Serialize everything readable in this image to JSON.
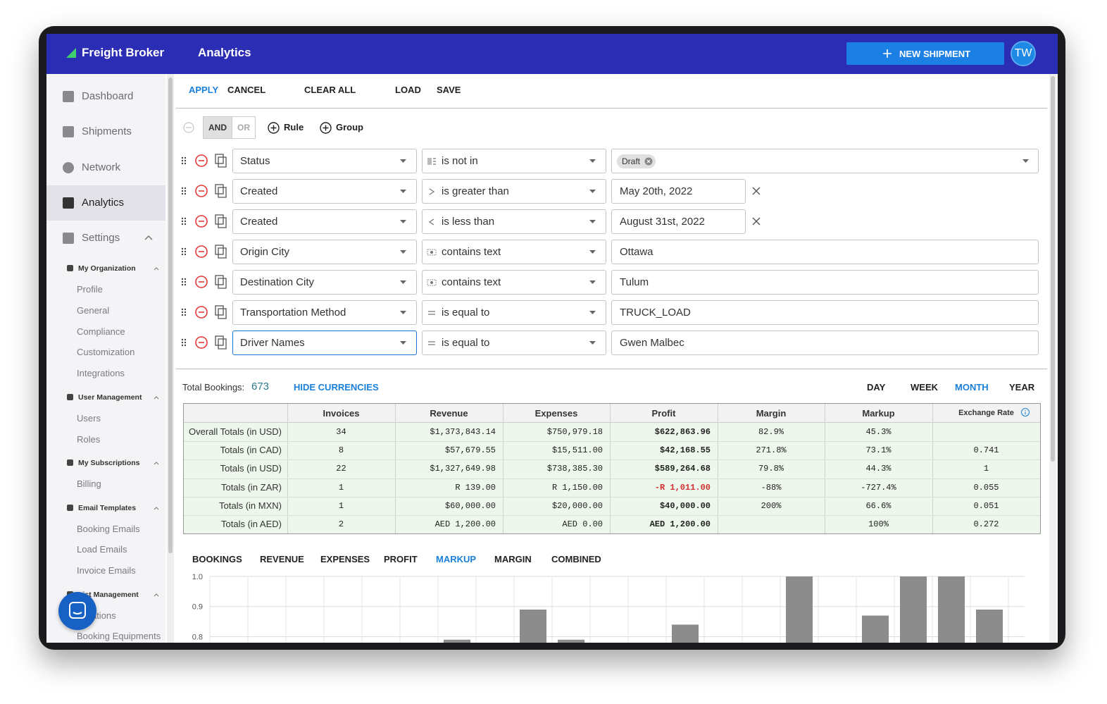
{
  "header": {
    "brand": "Freight Broker",
    "title": "Analytics",
    "new_shipment": "NEW SHIPMENT",
    "avatar": "TW"
  },
  "nav": [
    "Dashboard",
    "Shipments",
    "Network",
    "Analytics",
    "Settings"
  ],
  "nav_active": 3,
  "settings_groups": [
    {
      "title": "My Organization",
      "items": [
        "Profile",
        "General",
        "Compliance",
        "Customization",
        "Integrations"
      ]
    },
    {
      "title": "User Management",
      "items": [
        "Users",
        "Roles"
      ]
    },
    {
      "title": "My Subscriptions",
      "items": [
        "Billing"
      ]
    },
    {
      "title": "Email Templates",
      "items": [
        "Booking Emails",
        "Load Emails",
        "Invoice Emails"
      ]
    },
    {
      "title": "List Management",
      "items": [
        "Locations",
        "Booking Equipments"
      ]
    }
  ],
  "toolbar": [
    "APPLY",
    "CANCEL",
    "CLEAR ALL",
    "LOAD",
    "SAVE"
  ],
  "filter": {
    "and": "AND",
    "or": "OR",
    "rule": "Rule",
    "group": "Group",
    "rules": [
      {
        "field": "Status",
        "operator": "is not in",
        "icon": "list",
        "chip": "Draft"
      },
      {
        "field": "Created",
        "operator": "is greater than",
        "icon": "gt",
        "value": "May 20th, 2022",
        "clearable": true
      },
      {
        "field": "Created",
        "operator": "is less than",
        "icon": "lt",
        "value": "August 31st, 2022",
        "clearable": true
      },
      {
        "field": "Origin City",
        "operator": "contains text",
        "icon": "text",
        "value": "Ottawa"
      },
      {
        "field": "Destination City",
        "operator": "contains text",
        "icon": "text",
        "value": "Tulum"
      },
      {
        "field": "Transportation Method",
        "operator": "is equal to",
        "icon": "eq",
        "value": "TRUCK_LOAD"
      },
      {
        "field": "Driver Names",
        "operator": "is equal to",
        "icon": "eq",
        "value": "Gwen Malbec",
        "focused": true
      }
    ]
  },
  "summary": {
    "label": "Total Bookings:",
    "count": "673",
    "toggle": "HIDE CURRENCIES",
    "periods": [
      "DAY",
      "WEEK",
      "MONTH",
      "YEAR"
    ],
    "active_period": 2
  },
  "table": {
    "columns": [
      "Invoices",
      "Revenue",
      "Expenses",
      "Profit",
      "Margin",
      "Markup",
      "Exchange Rate"
    ],
    "rows": [
      {
        "label": "Overall Totals (in USD)",
        "cells": [
          "34",
          "$1,373,843.14",
          "$750,979.18",
          "$622,863.96",
          "82.9%",
          "45.3%",
          null
        ]
      },
      {
        "label": "Totals (in CAD)",
        "cells": [
          "8",
          "$57,679.55",
          "$15,511.00",
          "$42,168.55",
          "271.8%",
          "73.1%",
          "0.741"
        ]
      },
      {
        "label": "Totals (in USD)",
        "cells": [
          "22",
          "$1,327,649.98",
          "$738,385.30",
          "$589,264.68",
          "79.8%",
          "44.3%",
          "1"
        ]
      },
      {
        "label": "Totals (in ZAR)",
        "cells": [
          "1",
          "R 139.00",
          "R 1,150.00",
          "-R 1,011.00",
          "-88%",
          "-727.4%",
          "0.055"
        ]
      },
      {
        "label": "Totals (in MXN)",
        "cells": [
          "1",
          "$60,000.00",
          "$20,000.00",
          "$40,000.00",
          "200%",
          "66.6%",
          "0.051"
        ]
      },
      {
        "label": "Totals (in AED)",
        "cells": [
          "2",
          "AED 1,200.00",
          "AED 0.00",
          "AED 1,200.00",
          null,
          "100%",
          "0.272"
        ]
      }
    ]
  },
  "chart": {
    "type": "bar",
    "tabs": [
      "BOOKINGS",
      "REVENUE",
      "EXPENSES",
      "PROFIT",
      "MARKUP",
      "MARGIN",
      "COMBINED"
    ],
    "active_tab": 4,
    "color": "#8c8c8c",
    "categories": [
      null,
      null,
      null,
      null,
      null,
      null,
      null,
      null,
      null,
      null,
      null,
      null,
      null,
      null,
      null,
      null,
      null,
      null,
      null,
      null,
      null
    ],
    "values": [
      null,
      null,
      null,
      null,
      null,
      null,
      0.79,
      null,
      0.89,
      0.79,
      null,
      null,
      0.84,
      null,
      null,
      1.0,
      null,
      0.87,
      1.0,
      1.0,
      0.89
    ],
    "ylim": [
      0.78,
      1.0
    ],
    "yticks": [
      {
        "value": 1.0,
        "label": "1.0"
      },
      0.9,
      0.8
    ],
    "grid": true
  }
}
